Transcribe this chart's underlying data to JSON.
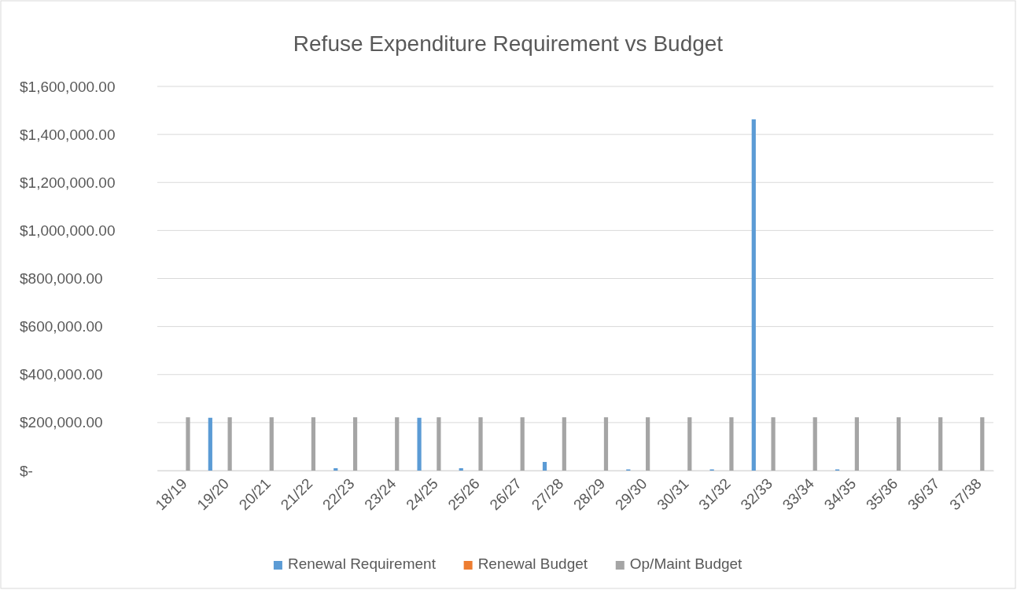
{
  "chart_data": {
    "type": "bar",
    "title": "Refuse Expenditure Requirement vs Budget",
    "categories": [
      "18/19",
      "19/20",
      "20/21",
      "21/22",
      "22/23",
      "23/24",
      "24/25",
      "25/26",
      "26/27",
      "27/28",
      "28/29",
      "29/30",
      "30/31",
      "31/32",
      "32/33",
      "33/34",
      "34/35",
      "35/36",
      "36/37",
      "37/38"
    ],
    "series": [
      {
        "name": "Renewal Requirement",
        "color": "#5b9bd5",
        "values": [
          0,
          220000,
          0,
          0,
          10000,
          0,
          220000,
          10000,
          0,
          36000,
          0,
          5000,
          0,
          5000,
          1463000,
          0,
          5000,
          0,
          0,
          0
        ]
      },
      {
        "name": "Renewal Budget",
        "color": "#ed7d31",
        "values": [
          0,
          0,
          0,
          0,
          0,
          0,
          0,
          0,
          0,
          0,
          0,
          0,
          0,
          0,
          0,
          0,
          0,
          0,
          0,
          0
        ]
      },
      {
        "name": "Op/Maint Budget",
        "color": "#a5a5a5",
        "values": [
          222000,
          222000,
          222000,
          222000,
          222000,
          222000,
          222000,
          222000,
          222000,
          222000,
          222000,
          222000,
          222000,
          222000,
          222000,
          222000,
          222000,
          222000,
          222000,
          222000
        ]
      }
    ],
    "ylim": [
      0,
      1600000
    ],
    "yticks": [
      {
        "value": 0,
        "label": "$-"
      },
      {
        "value": 200000,
        "label": "$200,000.00"
      },
      {
        "value": 400000,
        "label": "$400,000.00"
      },
      {
        "value": 600000,
        "label": "$600,000.00"
      },
      {
        "value": 800000,
        "label": "$800,000.00"
      },
      {
        "value": 1000000,
        "label": "$1,000,000.00"
      },
      {
        "value": 1200000,
        "label": "$1,200,000.00"
      },
      {
        "value": 1400000,
        "label": "$1,400,000.00"
      },
      {
        "value": 1600000,
        "label": "$1,600,000.00"
      }
    ],
    "grid": "y",
    "legend": "bottom"
  }
}
